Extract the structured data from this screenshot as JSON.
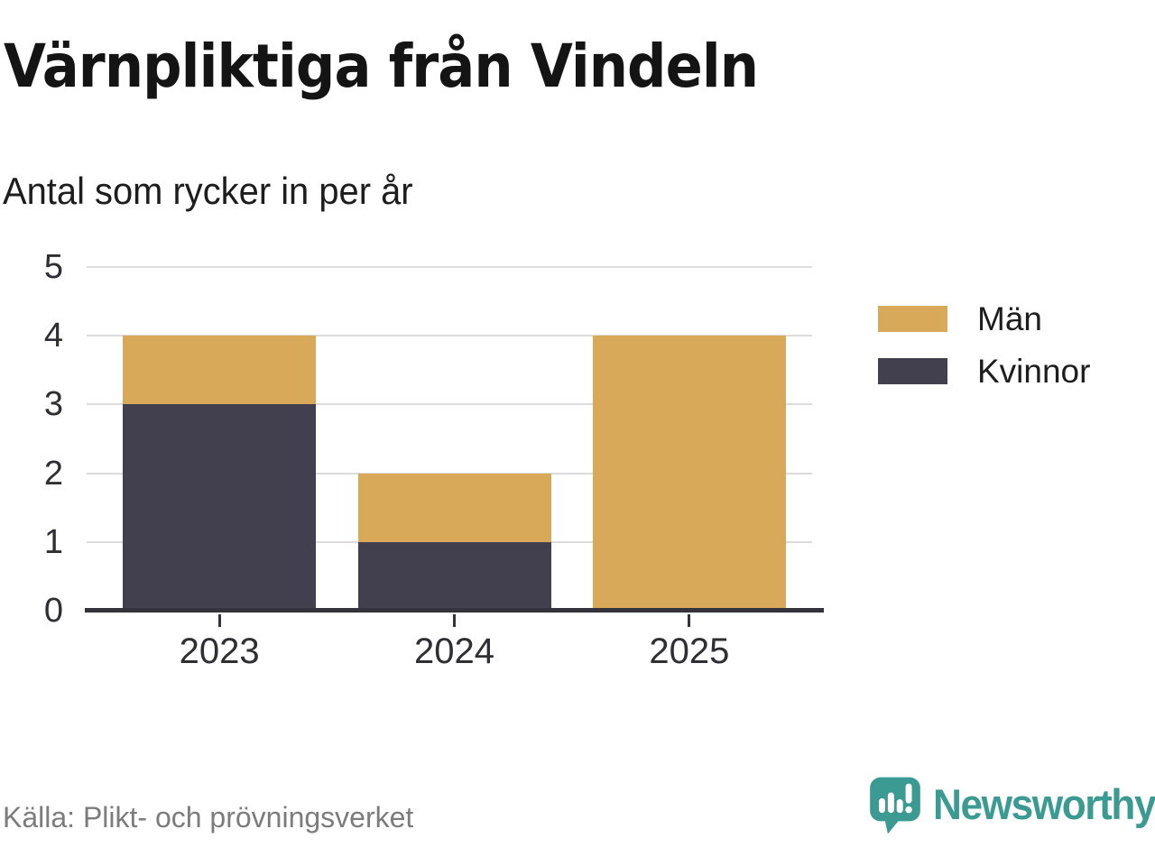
{
  "header": {
    "title": "Värnpliktiga från Vindeln",
    "subtitle": "Antal som rycker in per år"
  },
  "legend": [
    {
      "label": "Män",
      "color": "#d8a958"
    },
    {
      "label": "Kvinnor",
      "color": "#423f4f"
    }
  ],
  "chart_data": {
    "type": "bar",
    "stacked": true,
    "title": "Värnpliktiga från Vindeln",
    "subtitle": "Antal som rycker in per år",
    "categories": [
      "2023",
      "2024",
      "2025"
    ],
    "series": [
      {
        "name": "Kvinnor",
        "color": "#423f4f",
        "values": [
          3,
          1,
          0
        ]
      },
      {
        "name": "Män",
        "color": "#d8a958",
        "values": [
          1,
          1,
          4
        ]
      }
    ],
    "ylim": [
      0,
      5
    ],
    "yticks": [
      0,
      1,
      2,
      3,
      4,
      5
    ],
    "xlabel": "",
    "ylabel": "",
    "grid": true,
    "legend_position": "right",
    "colors": {
      "grid": "#dcdcdc",
      "axis": "#34323b",
      "tick_text": "#2e2e33"
    }
  },
  "footer": {
    "source": "Källa: Plikt- och prövningsverket",
    "brand": "Newsworthy",
    "brand_color": "#3b9b92"
  }
}
